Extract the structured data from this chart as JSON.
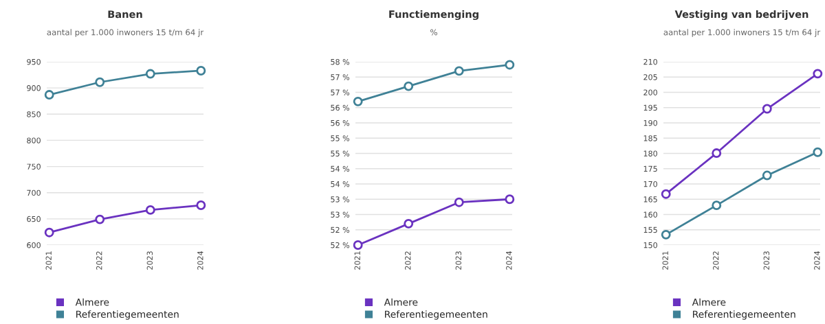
{
  "chart_data": [
    {
      "type": "line",
      "title": "Banen",
      "subtitle": "aantal per 1.000 inwoners 15 t/m 64 jr",
      "categories": [
        "2021",
        "2022",
        "2023",
        "2024"
      ],
      "ylim": [
        600,
        950
      ],
      "yticks": [
        600,
        650,
        700,
        750,
        800,
        850,
        900,
        950
      ],
      "grid": "y",
      "marker": "circle",
      "legend": "bottom left",
      "series": [
        {
          "name": "Almere",
          "color": "#6a32c0",
          "values": [
            624,
            649,
            667,
            676
          ]
        },
        {
          "name": "Referentiegemeenten",
          "color": "#3f8196",
          "values": [
            887,
            911,
            927,
            933
          ]
        }
      ]
    },
    {
      "type": "line",
      "title": "Functiemenging",
      "subtitle": "%",
      "categories": [
        "2021",
        "2022",
        "2023",
        "2024"
      ],
      "ylim": [
        52,
        58
      ],
      "yticks": [
        {
          "value": 52,
          "label": "52 %"
        },
        {
          "value": 52.5,
          "label": "52 %"
        },
        {
          "value": 53,
          "label": "53 %"
        },
        {
          "value": 53.5,
          "label": "53 %"
        },
        {
          "value": 54,
          "label": "54 %"
        },
        {
          "value": 54.5,
          "label": "54 %"
        },
        {
          "value": 55,
          "label": "55 %"
        },
        {
          "value": 55.5,
          "label": "55 %"
        },
        {
          "value": 56,
          "label": "56 %"
        },
        {
          "value": 56.5,
          "label": "56 %"
        },
        {
          "value": 57,
          "label": "57 %"
        },
        {
          "value": 57.5,
          "label": "57 %"
        },
        {
          "value": 58,
          "label": "58 %"
        }
      ],
      "grid": "y",
      "marker": "circle",
      "legend": "bottom left",
      "series": [
        {
          "name": "Almere",
          "color": "#6a32c0",
          "values": [
            52.0,
            52.7,
            53.4,
            53.5
          ]
        },
        {
          "name": "Referentiegemeenten",
          "color": "#3f8196",
          "values": [
            56.7,
            57.2,
            57.7,
            57.9
          ]
        }
      ]
    },
    {
      "type": "line",
      "title": "Vestiging van bedrijven",
      "subtitle": "aantal per 1.000 inwoners 15 t/m 64 jr",
      "categories": [
        "2021",
        "2022",
        "2023",
        "2024"
      ],
      "ylim": [
        150,
        210
      ],
      "yticks": [
        150,
        155,
        160,
        165,
        170,
        175,
        180,
        185,
        190,
        195,
        200,
        205,
        210
      ],
      "grid": "y",
      "marker": "circle",
      "legend": "bottom left",
      "series": [
        {
          "name": "Almere",
          "color": "#6a32c0",
          "values": [
            166.7,
            180.1,
            194.6,
            206.1
          ]
        },
        {
          "name": "Referentiegemeenten",
          "color": "#3f8196",
          "values": [
            153.4,
            163.0,
            172.8,
            180.4
          ]
        }
      ]
    }
  ]
}
